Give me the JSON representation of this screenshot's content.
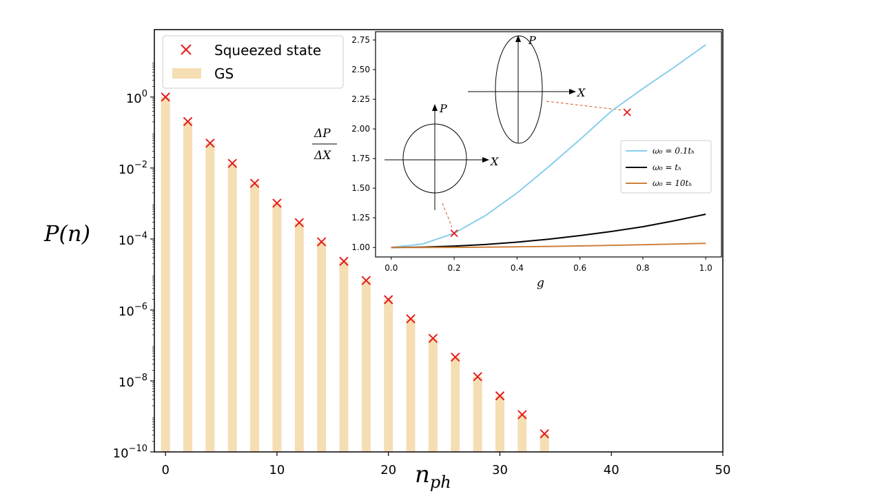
{
  "chart_data": [
    {
      "type": "bar",
      "title": "",
      "xlabel": "n",
      "xlabel_sub": "ph",
      "ylabel": "P(n)",
      "xlim": [
        -1,
        50
      ],
      "ylim_log10": [
        -10,
        1.9
      ],
      "yscale": "log",
      "xticks": [
        "0",
        "10",
        "20",
        "30",
        "40",
        "50"
      ],
      "xtick_values": [
        0,
        10,
        20,
        30,
        40,
        50
      ],
      "ytick_exponents": [
        "0",
        "-2",
        "-4",
        "-6",
        "-8",
        "-10"
      ],
      "ytick_values_log10": [
        0,
        -2,
        -4,
        -6,
        -8,
        -10
      ],
      "ytick_base": "10",
      "legend_position": "upper-left",
      "series": [
        {
          "name": "Squeezed state",
          "marker": "x",
          "color": "#e41a1c",
          "x": [
            0,
            2,
            4,
            6,
            8,
            10,
            12,
            14,
            16,
            18,
            20,
            22,
            24,
            26,
            28,
            30,
            32,
            34
          ],
          "log10_y": [
            0.0,
            -0.69,
            -1.3,
            -1.87,
            -2.43,
            -2.99,
            -3.54,
            -4.08,
            -4.63,
            -5.17,
            -5.71,
            -6.25,
            -6.8,
            -7.33,
            -7.88,
            -8.42,
            -8.95,
            -9.49
          ]
        },
        {
          "name": "GS",
          "marker": "bar",
          "color": "#f5deb3",
          "x": [
            0,
            2,
            4,
            6,
            8,
            10,
            12,
            14,
            16,
            18,
            20,
            22,
            24,
            26,
            28,
            30,
            32,
            34
          ],
          "log10_y": [
            0.0,
            -0.69,
            -1.3,
            -1.87,
            -2.43,
            -2.99,
            -3.54,
            -4.08,
            -4.63,
            -5.17,
            -5.71,
            -6.25,
            -6.8,
            -7.33,
            -7.88,
            -8.42,
            -8.95,
            -9.49
          ]
        }
      ]
    },
    {
      "type": "line",
      "title": "",
      "xlabel": "g",
      "ylabel_num": "ΔP",
      "ylabel_den": "ΔX",
      "xlim": [
        -0.05,
        1.05
      ],
      "ylim": [
        0.92,
        2.82
      ],
      "xticks": [
        "0.0",
        "0.2",
        "0.4",
        "0.6",
        "0.8",
        "1.0"
      ],
      "xtick_values": [
        0,
        0.2,
        0.4,
        0.6,
        0.8,
        1.0
      ],
      "yticks": [
        "1.00",
        "1.25",
        "1.50",
        "1.75",
        "2.00",
        "2.25",
        "2.50",
        "2.75"
      ],
      "ytick_values": [
        1.0,
        1.25,
        1.5,
        1.75,
        2.0,
        2.25,
        2.5,
        2.75
      ],
      "legend_position": "center-right",
      "series": [
        {
          "name": "ω₀ = 0.1tₕ",
          "color": "#87ceeb",
          "x": [
            0,
            0.1,
            0.2,
            0.3,
            0.4,
            0.5,
            0.6,
            0.7,
            0.8,
            0.9,
            1.0
          ],
          "y": [
            1.0,
            1.03,
            1.12,
            1.27,
            1.46,
            1.68,
            1.91,
            2.15,
            2.34,
            2.52,
            2.71
          ]
        },
        {
          "name": "ω₀ = tₕ",
          "color": "#000000",
          "x": [
            0,
            0.1,
            0.2,
            0.3,
            0.4,
            0.5,
            0.6,
            0.7,
            0.8,
            0.9,
            1.0
          ],
          "y": [
            1.0,
            1.003,
            1.011,
            1.025,
            1.045,
            1.07,
            1.1,
            1.135,
            1.175,
            1.225,
            1.28
          ]
        },
        {
          "name": "ω₀ = 10tₕ",
          "color": "#cd7f3a",
          "x": [
            0,
            0.1,
            0.2,
            0.3,
            0.4,
            0.5,
            0.6,
            0.7,
            0.8,
            0.9,
            1.0
          ],
          "y": [
            1.0,
            1.0,
            1.001,
            1.003,
            1.006,
            1.009,
            1.013,
            1.018,
            1.023,
            1.029,
            1.035
          ]
        }
      ],
      "markers": [
        {
          "x": 0.2,
          "y": 1.12
        },
        {
          "x": 0.75,
          "y": 2.14
        }
      ],
      "phase_space_axis_labels": {
        "p": "P",
        "x": "X"
      }
    }
  ]
}
